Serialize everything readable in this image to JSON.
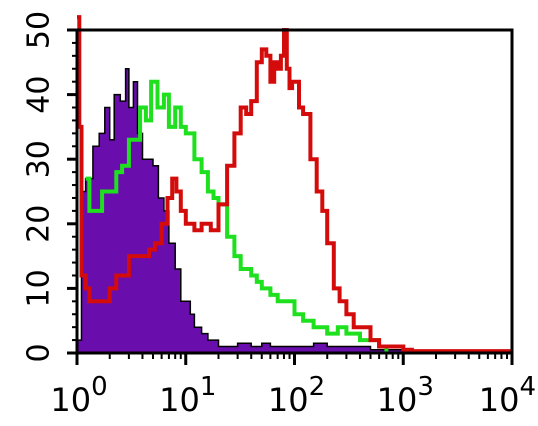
{
  "chart_data": {
    "type": "line",
    "xscale": "log",
    "xlim": [
      1,
      10000
    ],
    "ylim": [
      0,
      50
    ],
    "grid": false,
    "title": "",
    "xlabel": "",
    "ylabel": "",
    "x_ticks": [
      {
        "value": 1,
        "base": "10",
        "exp": "0"
      },
      {
        "value": 10,
        "base": "10",
        "exp": "1"
      },
      {
        "value": 100,
        "base": "10",
        "exp": "2"
      },
      {
        "value": 1000,
        "base": "10",
        "exp": "3"
      },
      {
        "value": 10000,
        "base": "10",
        "exp": "4"
      }
    ],
    "y_ticks": [
      "0",
      "10",
      "20",
      "30",
      "40",
      "50"
    ],
    "series": [
      {
        "kind": "filled",
        "fill": "#6a0dad",
        "stroke": "#000000",
        "x": [
          1.0,
          1.1,
          1.2,
          1.4,
          1.6,
          1.8,
          2.0,
          2.2,
          2.5,
          2.8,
          3.0,
          3.3,
          3.6,
          4.0,
          4.5,
          5.0,
          5.6,
          6.3,
          7.0,
          8.0,
          9.0,
          10,
          11,
          12,
          14,
          16,
          18,
          20,
          25,
          30,
          40,
          50,
          60,
          80,
          100,
          150,
          200,
          300,
          500,
          1000
        ],
        "y": [
          2,
          25,
          27,
          32,
          34,
          38,
          33,
          40,
          39,
          44,
          38,
          42,
          34,
          30,
          30,
          29,
          24,
          22,
          17,
          13,
          8,
          8,
          6,
          4,
          3,
          2,
          2,
          1,
          1,
          1.5,
          1,
          1.5,
          1,
          1,
          1,
          1.5,
          1,
          1,
          0.5,
          0
        ]
      },
      {
        "kind": "line",
        "stroke": "#1fe01f",
        "x": [
          1.2,
          1.3,
          1.5,
          1.7,
          2.0,
          2.3,
          2.6,
          3.0,
          3.4,
          3.8,
          4.3,
          4.8,
          5.5,
          6.3,
          7.0,
          8.0,
          9.0,
          10,
          12,
          14,
          16,
          18,
          20,
          24,
          28,
          32,
          36,
          40,
          45,
          50,
          60,
          70,
          80,
          100,
          120,
          150,
          180,
          200,
          250,
          300,
          400,
          500,
          600,
          700
        ],
        "y": [
          27,
          22,
          22,
          25,
          25,
          28,
          29,
          33,
          33,
          38,
          36,
          42,
          38,
          40,
          35,
          38,
          35,
          34,
          30,
          28,
          25,
          24,
          23,
          18,
          15,
          13,
          13,
          12,
          11,
          10,
          9,
          8,
          8,
          6,
          5,
          4,
          4,
          3,
          4,
          3,
          2,
          2,
          1,
          0
        ]
      },
      {
        "kind": "line",
        "stroke": "#d40b0b",
        "x": [
          1.0,
          1.05,
          1.1,
          1.2,
          1.3,
          1.5,
          1.7,
          2.0,
          2.3,
          2.7,
          3.0,
          3.5,
          4.0,
          4.6,
          5.2,
          6.0,
          6.8,
          7.5,
          8.2,
          9.0,
          10,
          12,
          14,
          17,
          20,
          24,
          28,
          32,
          36,
          40,
          45,
          50,
          55,
          60,
          65,
          70,
          75,
          80,
          85,
          90,
          95,
          100,
          110,
          120,
          140,
          160,
          180,
          200,
          230,
          260,
          300,
          350,
          400,
          500,
          600,
          700,
          800,
          1000,
          1200,
          10000
        ],
        "y": [
          52,
          35,
          12,
          10,
          8,
          8,
          8,
          10,
          12,
          12,
          15,
          15,
          15,
          16,
          17,
          20,
          24,
          27,
          25,
          22,
          20,
          19,
          20,
          19,
          23,
          29,
          34,
          38,
          37,
          39,
          45,
          47,
          46,
          42,
          45,
          44,
          46,
          50,
          44,
          41,
          42,
          42,
          38,
          37,
          30,
          25,
          22,
          17,
          10,
          8,
          6,
          4,
          4,
          2,
          1,
          1,
          1,
          0.5,
          0.3,
          0.3
        ]
      }
    ]
  }
}
